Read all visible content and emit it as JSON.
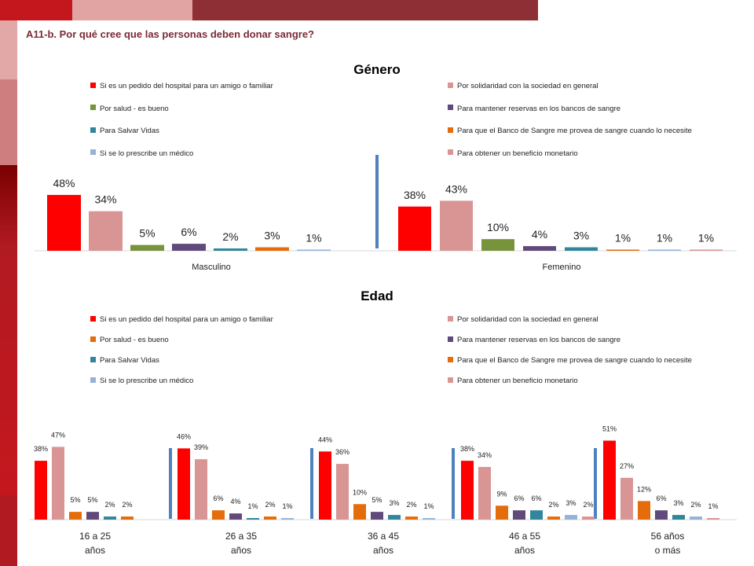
{
  "header": {
    "question": "A11-b. Por qué cree que las personas deben donar sangre?"
  },
  "colors": {
    "band": [
      "#c4171d",
      "#e2a3a3",
      "#f4e0e0",
      "#8e2f35"
    ],
    "sidebar": [
      "#e2a8a8",
      "#cf7e80",
      "#b21a22",
      "#750000"
    ]
  },
  "chart_data": [
    {
      "type": "bar",
      "title": "Género",
      "categories": [
        "Masculino",
        "Femenino"
      ],
      "legend": [
        {
          "label": "Si es un pedido del hospital para un amigo o familiar",
          "color": "#ff0000"
        },
        {
          "label": "Por solidaridad con la sociedad en general",
          "color": "#d99594"
        },
        {
          "label": "Por salud - es bueno",
          "color": "#77933c"
        },
        {
          "label": "Para mantener reservas en los bancos de sangre",
          "color": "#604a7b"
        },
        {
          "label": "Para Salvar Vidas",
          "color": "#31859c"
        },
        {
          "label": "Para que el Banco de Sangre me provea de sangre cuando lo necesite",
          "color": "#e46c0a"
        },
        {
          "label": "Si se lo prescribe un médico",
          "color": "#95b3d7"
        },
        {
          "label": "Para obtener un beneficio monetario",
          "color": "#d99594"
        }
      ],
      "groups": [
        {
          "name": "Masculino",
          "values": [
            48,
            34,
            5,
            6,
            2,
            3,
            1
          ],
          "colors": [
            "#ff0000",
            "#d99594",
            "#77933c",
            "#604a7b",
            "#31859c",
            "#e46c0a",
            "#95b3d7"
          ],
          "labels": [
            "48%",
            "34%",
            "5%",
            "6%",
            "2%",
            "3%",
            "1%"
          ]
        },
        {
          "name": "Femenino",
          "values": [
            38,
            43,
            10,
            4,
            3,
            1,
            1,
            1
          ],
          "colors": [
            "#ff0000",
            "#d99594",
            "#77933c",
            "#604a7b",
            "#31859c",
            "#e46c0a",
            "#95b3d7",
            "#d99594"
          ],
          "labels": [
            "38%",
            "43%",
            "10%",
            "4%",
            "3%",
            "1%",
            "1%",
            "1%"
          ]
        }
      ]
    },
    {
      "type": "bar",
      "title": "Edad",
      "categories": [
        "16 a 25 años",
        "26 a 35 años",
        "36 a 45 años",
        "46 a 55 años",
        "56 años o más"
      ],
      "legend": [
        {
          "label": "Si es un pedido del hospital para un amigo o familiar",
          "color": "#ff0000"
        },
        {
          "label": "Por solidaridad con la sociedad en general",
          "color": "#d99594"
        },
        {
          "label": "Por salud - es bueno",
          "color": "#e46c0a"
        },
        {
          "label": "Para mantener reservas en los bancos de sangre",
          "color": "#604a7b"
        },
        {
          "label": "Para Salvar Vidas",
          "color": "#31859c"
        },
        {
          "label": "Para que el Banco de Sangre me provea de sangre cuando lo necesite",
          "color": "#e46c0a"
        },
        {
          "label": "Si se lo prescribe un médico",
          "color": "#95b3d7"
        },
        {
          "label": "Para obtener un beneficio monetario",
          "color": "#d99594"
        }
      ],
      "groups": [
        {
          "name": "16 a 25 años",
          "lines": [
            "16 a 25",
            "años"
          ],
          "values": [
            38,
            47,
            5,
            5,
            2,
            2
          ],
          "colors": [
            "#ff0000",
            "#d99594",
            "#e46c0a",
            "#604a7b",
            "#31859c",
            "#e46c0a"
          ],
          "labels": [
            "38%",
            "47%",
            "5%",
            "5%",
            "2%",
            "2%"
          ]
        },
        {
          "name": "26 a 35 años",
          "lines": [
            "26 a 35",
            "años"
          ],
          "values": [
            46,
            39,
            6,
            4,
            1,
            2,
            1
          ],
          "colors": [
            "#ff0000",
            "#d99594",
            "#e46c0a",
            "#604a7b",
            "#31859c",
            "#e46c0a",
            "#95b3d7"
          ],
          "labels": [
            "46%",
            "39%",
            "6%",
            "4%",
            "1%",
            "2%",
            "1%"
          ]
        },
        {
          "name": "36 a 45 años",
          "lines": [
            "36 a 45",
            "años"
          ],
          "values": [
            44,
            36,
            10,
            5,
            3,
            2,
            1
          ],
          "colors": [
            "#ff0000",
            "#d99594",
            "#e46c0a",
            "#604a7b",
            "#31859c",
            "#e46c0a",
            "#95b3d7"
          ],
          "labels": [
            "44%",
            "36%",
            "10%",
            "5%",
            "3%",
            "2%",
            "1%"
          ]
        },
        {
          "name": "46 a 55 años",
          "lines": [
            "46 a 55",
            "años"
          ],
          "values": [
            38,
            34,
            9,
            6,
            6,
            2,
            3,
            2
          ],
          "colors": [
            "#ff0000",
            "#d99594",
            "#e46c0a",
            "#604a7b",
            "#31859c",
            "#e46c0a",
            "#95b3d7",
            "#d99594"
          ],
          "labels": [
            "38%",
            "34%",
            "9%",
            "6%",
            "6%",
            "2%",
            "3%",
            "2%"
          ]
        },
        {
          "name": "56 años o más",
          "lines": [
            "56 años",
            "o más"
          ],
          "values": [
            51,
            27,
            12,
            6,
            3,
            2,
            1
          ],
          "colors": [
            "#ff0000",
            "#d99594",
            "#e46c0a",
            "#604a7b",
            "#31859c",
            "#95b3d7",
            "#d99594"
          ],
          "labels": [
            "51%",
            "27%",
            "12%",
            "6%",
            "3%",
            "2%",
            "1%"
          ]
        }
      ]
    }
  ]
}
